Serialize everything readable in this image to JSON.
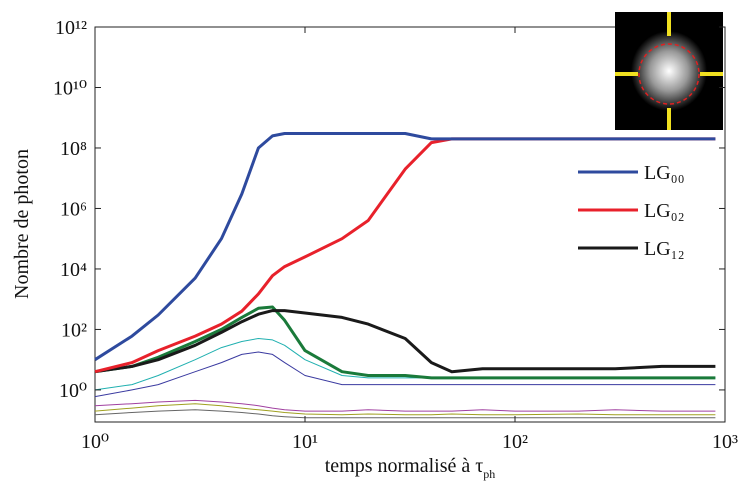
{
  "chart_data": {
    "type": "line",
    "y_label": "Nombre de photon",
    "x_label": "temps normalisé à τ",
    "x_label_sub": "ph",
    "log_x": true,
    "log_y": true,
    "xlim": [
      1,
      1000
    ],
    "xticks": [
      {
        "value": 1,
        "label": "10⁰"
      },
      {
        "value": 10,
        "label": "10¹"
      },
      {
        "value": 100,
        "label": "10²"
      },
      {
        "value": 1000,
        "label": "10³"
      }
    ],
    "ylim": [
      0.087,
      1000000000000
    ],
    "yticks": [
      {
        "value": 1,
        "label": "10⁰"
      },
      {
        "value": 100,
        "label": "10²"
      },
      {
        "value": 10000,
        "label": "10⁴"
      },
      {
        "value": 1000000,
        "label": "10⁶"
      },
      {
        "value": 100000000,
        "label": "10⁸"
      },
      {
        "value": 10000000000,
        "label": "10¹⁰"
      },
      {
        "value": 1000000000000,
        "label": "10¹²"
      }
    ],
    "legend_position": "upper right",
    "x": [
      1,
      1.5,
      2,
      3,
      4,
      5,
      6,
      7,
      8,
      10,
      15,
      20,
      30,
      40,
      50,
      70,
      100,
      200,
      300,
      500,
      900
    ],
    "series": [
      {
        "name": "LG₀₀",
        "color": "#2e4a9e",
        "values": [
          10,
          60,
          300,
          5000,
          100000,
          3000000,
          100000000,
          250000000,
          300000000,
          300000000,
          300000000,
          300000000,
          300000000,
          200000000,
          200000000,
          200000000,
          200000000,
          200000000,
          200000000,
          200000000,
          200000000
        ]
      },
      {
        "name": "LG₀₂",
        "color": "#e8212b",
        "values": [
          4,
          8,
          20,
          60,
          150,
          400,
          1500,
          6000,
          12000,
          25000,
          100000,
          400000,
          20000000,
          150000000,
          200000000,
          200000000,
          200000000,
          200000000,
          200000000,
          200000000,
          200000000
        ]
      },
      {
        "name": "LG₁₂",
        "color": "#1a1a1a",
        "values": [
          4,
          6,
          10,
          30,
          80,
          180,
          320,
          420,
          420,
          350,
          250,
          150,
          50,
          8,
          4,
          5,
          5,
          5,
          5,
          6,
          6
        ]
      },
      {
        "color": "#1a7a3a",
        "values": [
          4,
          6,
          12,
          40,
          100,
          250,
          500,
          550,
          200,
          20,
          4,
          3,
          3,
          2.5,
          2.5,
          2.5,
          2.5,
          2.5,
          2.5,
          2.5,
          2.5
        ]
      },
      {
        "color": "#20b0b0",
        "values": [
          1,
          1.5,
          3,
          10,
          25,
          40,
          50,
          45,
          30,
          10,
          3,
          2.5,
          2.5,
          2.5,
          2.5,
          2.5,
          2.5,
          2.5,
          2.5,
          2.5,
          2.5
        ]
      },
      {
        "color": "#3a3aa0",
        "values": [
          0.6,
          1,
          1.5,
          4,
          8,
          15,
          18,
          15,
          8,
          3,
          1.5,
          1.5,
          1.5,
          1.5,
          1.5,
          1.5,
          1.5,
          1.5,
          1.5,
          1.5,
          1.5
        ]
      },
      {
        "color": "#a040a0",
        "values": [
          0.3,
          0.35,
          0.4,
          0.45,
          0.4,
          0.35,
          0.3,
          0.25,
          0.22,
          0.2,
          0.2,
          0.22,
          0.2,
          0.2,
          0.2,
          0.22,
          0.2,
          0.2,
          0.22,
          0.2,
          0.2
        ]
      },
      {
        "color": "#a0a020",
        "values": [
          0.2,
          0.25,
          0.3,
          0.35,
          0.3,
          0.25,
          0.22,
          0.2,
          0.18,
          0.16,
          0.15,
          0.16,
          0.15,
          0.15,
          0.16,
          0.15,
          0.15,
          0.16,
          0.15,
          0.15,
          0.15
        ]
      },
      {
        "color": "#666666",
        "values": [
          0.15,
          0.18,
          0.2,
          0.22,
          0.2,
          0.18,
          0.16,
          0.14,
          0.13,
          0.12,
          0.12,
          0.12,
          0.12,
          0.12,
          0.12,
          0.12,
          0.12,
          0.12,
          0.12,
          0.12,
          0.12
        ]
      }
    ]
  }
}
